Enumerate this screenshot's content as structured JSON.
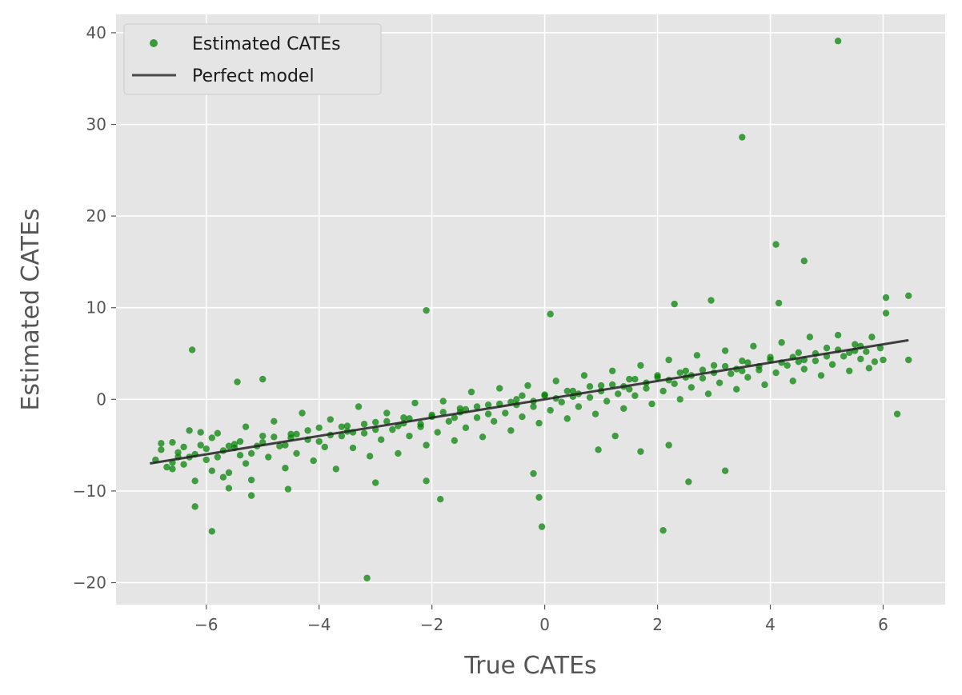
{
  "chart_data": {
    "type": "scatter",
    "title": "",
    "xlabel": "True CATEs",
    "ylabel": "Estimated CATEs",
    "xlim": [
      -7.6,
      7.1
    ],
    "ylim": [
      -22.4,
      42.0
    ],
    "xticks": [
      {
        "value": -6,
        "label": "−6"
      },
      {
        "value": -4,
        "label": "−4"
      },
      {
        "value": -2,
        "label": "−2"
      },
      {
        "value": 0,
        "label": "0"
      },
      {
        "value": 2,
        "label": "2"
      },
      {
        "value": 4,
        "label": "4"
      },
      {
        "value": 6,
        "label": "6"
      }
    ],
    "yticks": [
      {
        "value": -20,
        "label": "−20"
      },
      {
        "value": -10,
        "label": "−10"
      },
      {
        "value": 0,
        "label": "0"
      },
      {
        "value": 10,
        "label": "10"
      },
      {
        "value": 20,
        "label": "20"
      },
      {
        "value": 30,
        "label": "30"
      },
      {
        "value": 40,
        "label": "40"
      }
    ],
    "grid": true,
    "legend_position": "top-left",
    "series": [
      {
        "name": "Estimated CATEs",
        "kind": "scatter",
        "color": "#008000",
        "points": [
          [
            -6.9,
            -6.6
          ],
          [
            -6.8,
            -5.5
          ],
          [
            -6.7,
            -7.4
          ],
          [
            -6.6,
            -4.7
          ],
          [
            -6.5,
            -5.8
          ],
          [
            -6.4,
            -7.1
          ],
          [
            -6.3,
            -3.4
          ],
          [
            -6.3,
            -6.3
          ],
          [
            -6.2,
            -8.9
          ],
          [
            -6.1,
            -5.0
          ],
          [
            -6.0,
            -6.6
          ],
          [
            -5.9,
            -4.2
          ],
          [
            -5.9,
            -7.8
          ],
          [
            -5.8,
            -3.7
          ],
          [
            -5.7,
            -5.6
          ],
          [
            -5.6,
            -8.0
          ],
          [
            -5.5,
            -4.9
          ],
          [
            -5.4,
            -6.1
          ],
          [
            -5.3,
            -3.0
          ],
          [
            -5.3,
            -7.0
          ],
          [
            -5.2,
            -8.8
          ],
          [
            -5.1,
            -5.1
          ],
          [
            -5.0,
            -4.0
          ],
          [
            -4.9,
            -6.3
          ],
          [
            -4.8,
            -2.4
          ],
          [
            -4.7,
            -5.1
          ],
          [
            -4.6,
            -7.5
          ],
          [
            -4.5,
            -3.8
          ],
          [
            -4.4,
            -5.9
          ],
          [
            -4.3,
            -1.5
          ],
          [
            -4.2,
            -4.4
          ],
          [
            -4.1,
            -6.7
          ],
          [
            -4.0,
            -3.1
          ],
          [
            -3.9,
            -5.2
          ],
          [
            -3.8,
            -2.2
          ],
          [
            -3.7,
            -7.6
          ],
          [
            -3.6,
            -4.0
          ],
          [
            -3.5,
            -2.9
          ],
          [
            -3.4,
            -5.3
          ],
          [
            -3.3,
            -0.8
          ],
          [
            -3.2,
            -3.7
          ],
          [
            -3.1,
            -6.2
          ],
          [
            -3.0,
            -2.5
          ],
          [
            -2.9,
            -4.4
          ],
          [
            -2.8,
            -1.5
          ],
          [
            -2.7,
            -3.3
          ],
          [
            -2.6,
            -5.9
          ],
          [
            -2.5,
            -2.0
          ],
          [
            -2.4,
            -4.0
          ],
          [
            -2.3,
            -0.4
          ],
          [
            -2.2,
            -3.0
          ],
          [
            -2.1,
            -5.0
          ],
          [
            -2.0,
            -1.7
          ],
          [
            -1.9,
            -3.6
          ],
          [
            -1.8,
            -0.2
          ],
          [
            -1.7,
            -2.4
          ],
          [
            -1.6,
            -4.5
          ],
          [
            -1.5,
            -1.0
          ],
          [
            -1.4,
            -3.1
          ],
          [
            -1.3,
            0.8
          ],
          [
            -1.2,
            -2.0
          ],
          [
            -1.1,
            -4.1
          ],
          [
            -1.0,
            -0.6
          ],
          [
            -0.9,
            -2.4
          ],
          [
            -0.8,
            1.2
          ],
          [
            -0.7,
            -1.5
          ],
          [
            -0.6,
            -3.4
          ],
          [
            -0.5,
            0.0
          ],
          [
            -0.4,
            -1.9
          ],
          [
            -0.3,
            1.5
          ],
          [
            -0.2,
            -0.8
          ],
          [
            -0.1,
            -2.6
          ],
          [
            0.0,
            0.4
          ],
          [
            0.1,
            -1.2
          ],
          [
            0.2,
            2.0
          ],
          [
            0.3,
            -0.3
          ],
          [
            0.4,
            -2.1
          ],
          [
            0.5,
            0.9
          ],
          [
            0.6,
            -0.8
          ],
          [
            0.7,
            2.6
          ],
          [
            0.8,
            0.2
          ],
          [
            0.9,
            -1.6
          ],
          [
            1.0,
            1.5
          ],
          [
            1.1,
            -0.2
          ],
          [
            1.2,
            3.1
          ],
          [
            1.3,
            0.6
          ],
          [
            1.4,
            -1.0
          ],
          [
            1.5,
            2.2
          ],
          [
            1.6,
            0.4
          ],
          [
            1.7,
            3.7
          ],
          [
            1.8,
            1.2
          ],
          [
            1.9,
            -0.5
          ],
          [
            2.0,
            2.6
          ],
          [
            2.1,
            0.9
          ],
          [
            2.2,
            4.3
          ],
          [
            2.3,
            1.7
          ],
          [
            2.4,
            0.0
          ],
          [
            2.5,
            3.1
          ],
          [
            2.6,
            1.3
          ],
          [
            2.7,
            4.8
          ],
          [
            2.8,
            2.3
          ],
          [
            2.9,
            0.6
          ],
          [
            3.0,
            3.7
          ],
          [
            3.1,
            1.8
          ],
          [
            3.2,
            5.3
          ],
          [
            3.3,
            2.8
          ],
          [
            3.4,
            1.1
          ],
          [
            3.5,
            4.2
          ],
          [
            3.6,
            2.4
          ],
          [
            3.7,
            5.8
          ],
          [
            3.8,
            3.2
          ],
          [
            3.9,
            1.6
          ],
          [
            4.0,
            4.6
          ],
          [
            4.1,
            2.9
          ],
          [
            4.2,
            6.2
          ],
          [
            4.3,
            3.7
          ],
          [
            4.4,
            2.0
          ],
          [
            4.5,
            5.1
          ],
          [
            4.6,
            3.3
          ],
          [
            4.7,
            6.8
          ],
          [
            4.8,
            4.2
          ],
          [
            4.9,
            2.6
          ],
          [
            5.0,
            5.6
          ],
          [
            5.1,
            3.8
          ],
          [
            5.2,
            7.0
          ],
          [
            5.3,
            4.7
          ],
          [
            5.4,
            3.1
          ],
          [
            5.5,
            6.0
          ],
          [
            5.6,
            4.4
          ],
          [
            5.7,
            5.2
          ],
          [
            -6.6,
            -6.9
          ],
          [
            -6.4,
            -5.2
          ],
          [
            -6.2,
            -6.0
          ],
          [
            -6.0,
            -5.4
          ],
          [
            -5.8,
            -6.3
          ],
          [
            -5.6,
            -5.1
          ],
          [
            -5.4,
            -4.6
          ],
          [
            -5.2,
            -5.9
          ],
          [
            -5.0,
            -4.7
          ],
          [
            -4.8,
            -4.1
          ],
          [
            -4.6,
            -5.0
          ],
          [
            -4.4,
            -3.8
          ],
          [
            -4.2,
            -3.4
          ],
          [
            -4.0,
            -4.6
          ],
          [
            -3.8,
            -3.9
          ],
          [
            -3.6,
            -3.0
          ],
          [
            -3.4,
            -3.6
          ],
          [
            -3.2,
            -2.7
          ],
          [
            -3.0,
            -3.3
          ],
          [
            -2.8,
            -2.4
          ],
          [
            -2.6,
            -2.9
          ],
          [
            -2.4,
            -2.1
          ],
          [
            -2.2,
            -2.7
          ],
          [
            -2.0,
            -1.9
          ],
          [
            -1.8,
            -1.4
          ],
          [
            -1.6,
            -2.0
          ],
          [
            -1.4,
            -1.1
          ],
          [
            -1.2,
            -0.8
          ],
          [
            -1.0,
            -1.6
          ],
          [
            -0.8,
            -0.5
          ],
          [
            -0.6,
            -0.3
          ],
          [
            -0.4,
            0.4
          ],
          [
            -0.2,
            -0.2
          ],
          [
            0.0,
            0.5
          ],
          [
            0.2,
            0.1
          ],
          [
            0.4,
            0.9
          ],
          [
            0.6,
            0.6
          ],
          [
            0.8,
            1.4
          ],
          [
            1.0,
            0.9
          ],
          [
            1.2,
            1.6
          ],
          [
            1.4,
            1.4
          ],
          [
            1.6,
            2.2
          ],
          [
            1.8,
            1.8
          ],
          [
            2.0,
            2.4
          ],
          [
            2.2,
            2.1
          ],
          [
            2.4,
            2.9
          ],
          [
            2.6,
            2.6
          ],
          [
            2.8,
            3.2
          ],
          [
            3.0,
            2.9
          ],
          [
            3.2,
            3.6
          ],
          [
            3.4,
            3.3
          ],
          [
            3.6,
            4.0
          ],
          [
            3.8,
            3.6
          ],
          [
            4.0,
            4.3
          ],
          [
            4.2,
            4.0
          ],
          [
            4.4,
            4.6
          ],
          [
            4.6,
            4.3
          ],
          [
            4.8,
            5.0
          ],
          [
            5.0,
            4.7
          ],
          [
            5.2,
            5.4
          ],
          [
            5.4,
            5.1
          ],
          [
            5.6,
            5.8
          ],
          [
            -6.5,
            -6.3
          ],
          [
            -5.5,
            -5.3
          ],
          [
            -4.5,
            -4.2
          ],
          [
            -3.5,
            -3.5
          ],
          [
            -2.5,
            -2.6
          ],
          [
            -1.5,
            -1.4
          ],
          [
            -0.5,
            -0.6
          ],
          [
            0.5,
            0.3
          ],
          [
            1.5,
            1.1
          ],
          [
            2.5,
            2.4
          ],
          [
            3.5,
            3.1
          ],
          [
            4.5,
            4.1
          ],
          [
            5.5,
            5.3
          ],
          [
            -6.25,
            5.4
          ],
          [
            -5.45,
            1.9
          ],
          [
            -5.0,
            2.2
          ],
          [
            -2.1,
            9.7
          ],
          [
            0.1,
            9.3
          ],
          [
            2.3,
            10.4
          ],
          [
            2.95,
            10.8
          ],
          [
            4.15,
            10.5
          ],
          [
            4.6,
            15.1
          ],
          [
            4.1,
            16.9
          ],
          [
            3.5,
            28.6
          ],
          [
            5.2,
            39.1
          ],
          [
            6.05,
            11.1
          ],
          [
            6.45,
            11.3
          ],
          [
            6.05,
            9.4
          ],
          [
            6.45,
            4.3
          ],
          [
            6.25,
            -1.6
          ],
          [
            -6.2,
            -11.7
          ],
          [
            -5.9,
            -14.4
          ],
          [
            -3.15,
            -19.5
          ],
          [
            -1.85,
            -10.9
          ],
          [
            -0.1,
            -10.7
          ],
          [
            -0.05,
            -13.9
          ],
          [
            2.1,
            -14.3
          ],
          [
            2.55,
            -9.0
          ],
          [
            3.2,
            -7.8
          ],
          [
            -0.2,
            -8.1
          ],
          [
            -2.1,
            -8.9
          ],
          [
            -3.0,
            -9.1
          ],
          [
            -5.2,
            -10.5
          ],
          [
            -4.55,
            -9.8
          ],
          [
            1.7,
            -5.7
          ],
          [
            2.2,
            -5.0
          ],
          [
            0.95,
            -5.5
          ],
          [
            1.25,
            -4.0
          ],
          [
            5.85,
            4.1
          ],
          [
            5.95,
            5.6
          ],
          [
            6.0,
            4.3
          ],
          [
            5.8,
            6.8
          ],
          [
            5.75,
            3.4
          ],
          [
            -6.8,
            -4.8
          ],
          [
            -6.6,
            -7.6
          ],
          [
            -6.1,
            -3.6
          ],
          [
            -5.7,
            -8.5
          ],
          [
            -5.6,
            -9.7
          ]
        ]
      },
      {
        "name": "Perfect model",
        "kind": "line",
        "color": "#222222",
        "points": [
          [
            -7.0,
            -7.0
          ],
          [
            6.45,
            6.45
          ]
        ]
      }
    ]
  }
}
